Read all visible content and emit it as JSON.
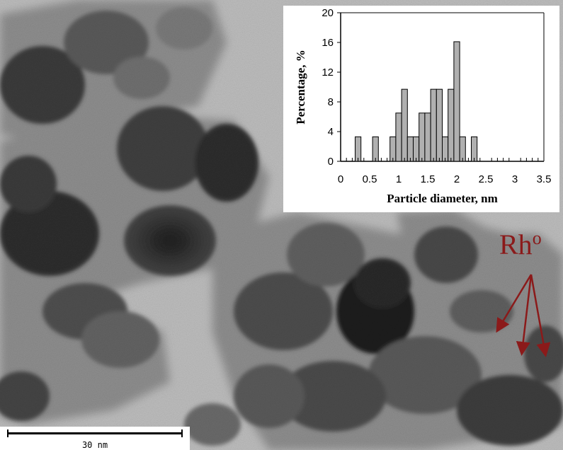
{
  "image": {
    "kind": "TEM micrograph of Rh nanoparticles on a support",
    "colors": {
      "background_gray": "#b8b8b8",
      "dark_particle": "#2a2a2a",
      "annotation": "#8b1a1a"
    }
  },
  "annotation": {
    "label_main": "Rh",
    "label_sup": "o"
  },
  "scale_bar": {
    "label": "30 nm"
  },
  "chart_data": {
    "type": "bar",
    "x": [
      0.3,
      0.6,
      0.9,
      1.0,
      1.1,
      1.2,
      1.3,
      1.4,
      1.5,
      1.6,
      1.7,
      1.8,
      1.9,
      2.0,
      2.1,
      2.3
    ],
    "values": [
      3.3,
      3.3,
      3.3,
      6.5,
      9.7,
      3.3,
      3.3,
      6.5,
      6.5,
      9.7,
      9.7,
      3.3,
      9.7,
      16.1,
      3.3,
      3.3
    ],
    "bin_width": 0.1,
    "xlabel": "Particle diameter, nm",
    "ylabel": "Percentage, %",
    "xlim": [
      0,
      3.5
    ],
    "ylim": [
      0,
      20
    ],
    "xticks": [
      "0",
      "0.5",
      "1",
      "1.5",
      "2",
      "2.5",
      "3",
      "3.5"
    ],
    "yticks": [
      "0",
      "4",
      "8",
      "12",
      "16",
      "20"
    ],
    "bar_color": "#b0b0b0",
    "grid": false,
    "legend": false
  }
}
